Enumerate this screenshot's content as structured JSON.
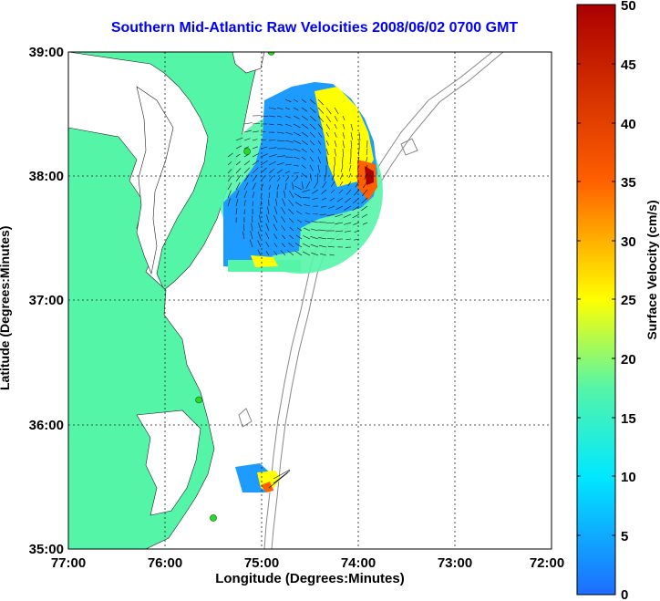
{
  "title": "Southern Mid-Atlantic Raw Velocities 2008/06/02 0700 GMT",
  "map": {
    "xlabel": "Longitude (Degrees:Minutes)",
    "ylabel": "Latitude (Degrees:Minutes)",
    "x_ticks": [
      "77:00",
      "76:00",
      "75:00",
      "74:00",
      "73:00",
      "72:00"
    ],
    "y_ticks": [
      "39:00",
      "38:00",
      "37:00",
      "36:00",
      "35:00"
    ],
    "lon_range": [
      -77,
      -72
    ],
    "lat_range": [
      35,
      39
    ],
    "grid": "dotted",
    "colors": {
      "land": "#55f5a8",
      "water": "#ffffff",
      "bathymetry": "#888888",
      "station": "#22dd22"
    }
  },
  "colorbar": {
    "label": "Surface Velocity (cm/s)",
    "ticks": [
      "50",
      "45",
      "40",
      "35",
      "30",
      "25",
      "20",
      "15",
      "10",
      "5",
      "0"
    ],
    "range": [
      0,
      50
    ],
    "colors": [
      "#1e6cff",
      "#00e8ff",
      "#55f5a8",
      "#ffff00",
      "#ff6000",
      "#aa0000"
    ]
  },
  "stations": [
    {
      "lon": -74.9,
      "lat": 39.0
    },
    {
      "lon": -75.15,
      "lat": 38.2
    },
    {
      "lon": -75.65,
      "lat": 36.2
    },
    {
      "lon": -75.5,
      "lat": 35.25
    }
  ]
}
